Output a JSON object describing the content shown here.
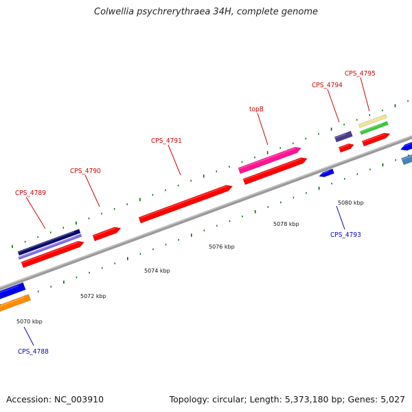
{
  "header": {
    "title": "Colwellia psychrerythraea 34H, complete genome"
  },
  "footer": {
    "accession": "Accession: NC_003910",
    "stats": "Topology: circular; Length: 5,373,180 bp; Genes: 5,027"
  },
  "scale": {
    "unit": "kbp",
    "ticks": [
      "5070 kbp",
      "5072 kbp",
      "5074 kbp",
      "5076 kbp",
      "5078 kbp",
      "5080 kbp"
    ]
  },
  "genes": {
    "cps4788": "CPS_4788",
    "cps4789": "CPS_4789",
    "cps4790": "CPS_4790",
    "cps4791": "CPS_4791",
    "topB": "topB",
    "cps4793": "CPS_4793",
    "cps4794": "CPS_4794",
    "cps4795": "CPS_4795"
  },
  "colors": {
    "backbone": "#808080",
    "gene_red": "#ff0000",
    "gene_blue": "#0000ee",
    "gene_orange": "#ff8c00",
    "gene_pink": "#ff1493",
    "gene_navy": "#0a0a6e",
    "gene_lavender": "#7b68ee",
    "gene_purple": "#483d8b",
    "gene_khaki": "#f0e68c",
    "gene_green": "#32cd32",
    "gene_steelblue": "#4682b4",
    "tick_green": "#006400",
    "label_forward": "#cc0000",
    "label_reverse": "#0000cc"
  }
}
